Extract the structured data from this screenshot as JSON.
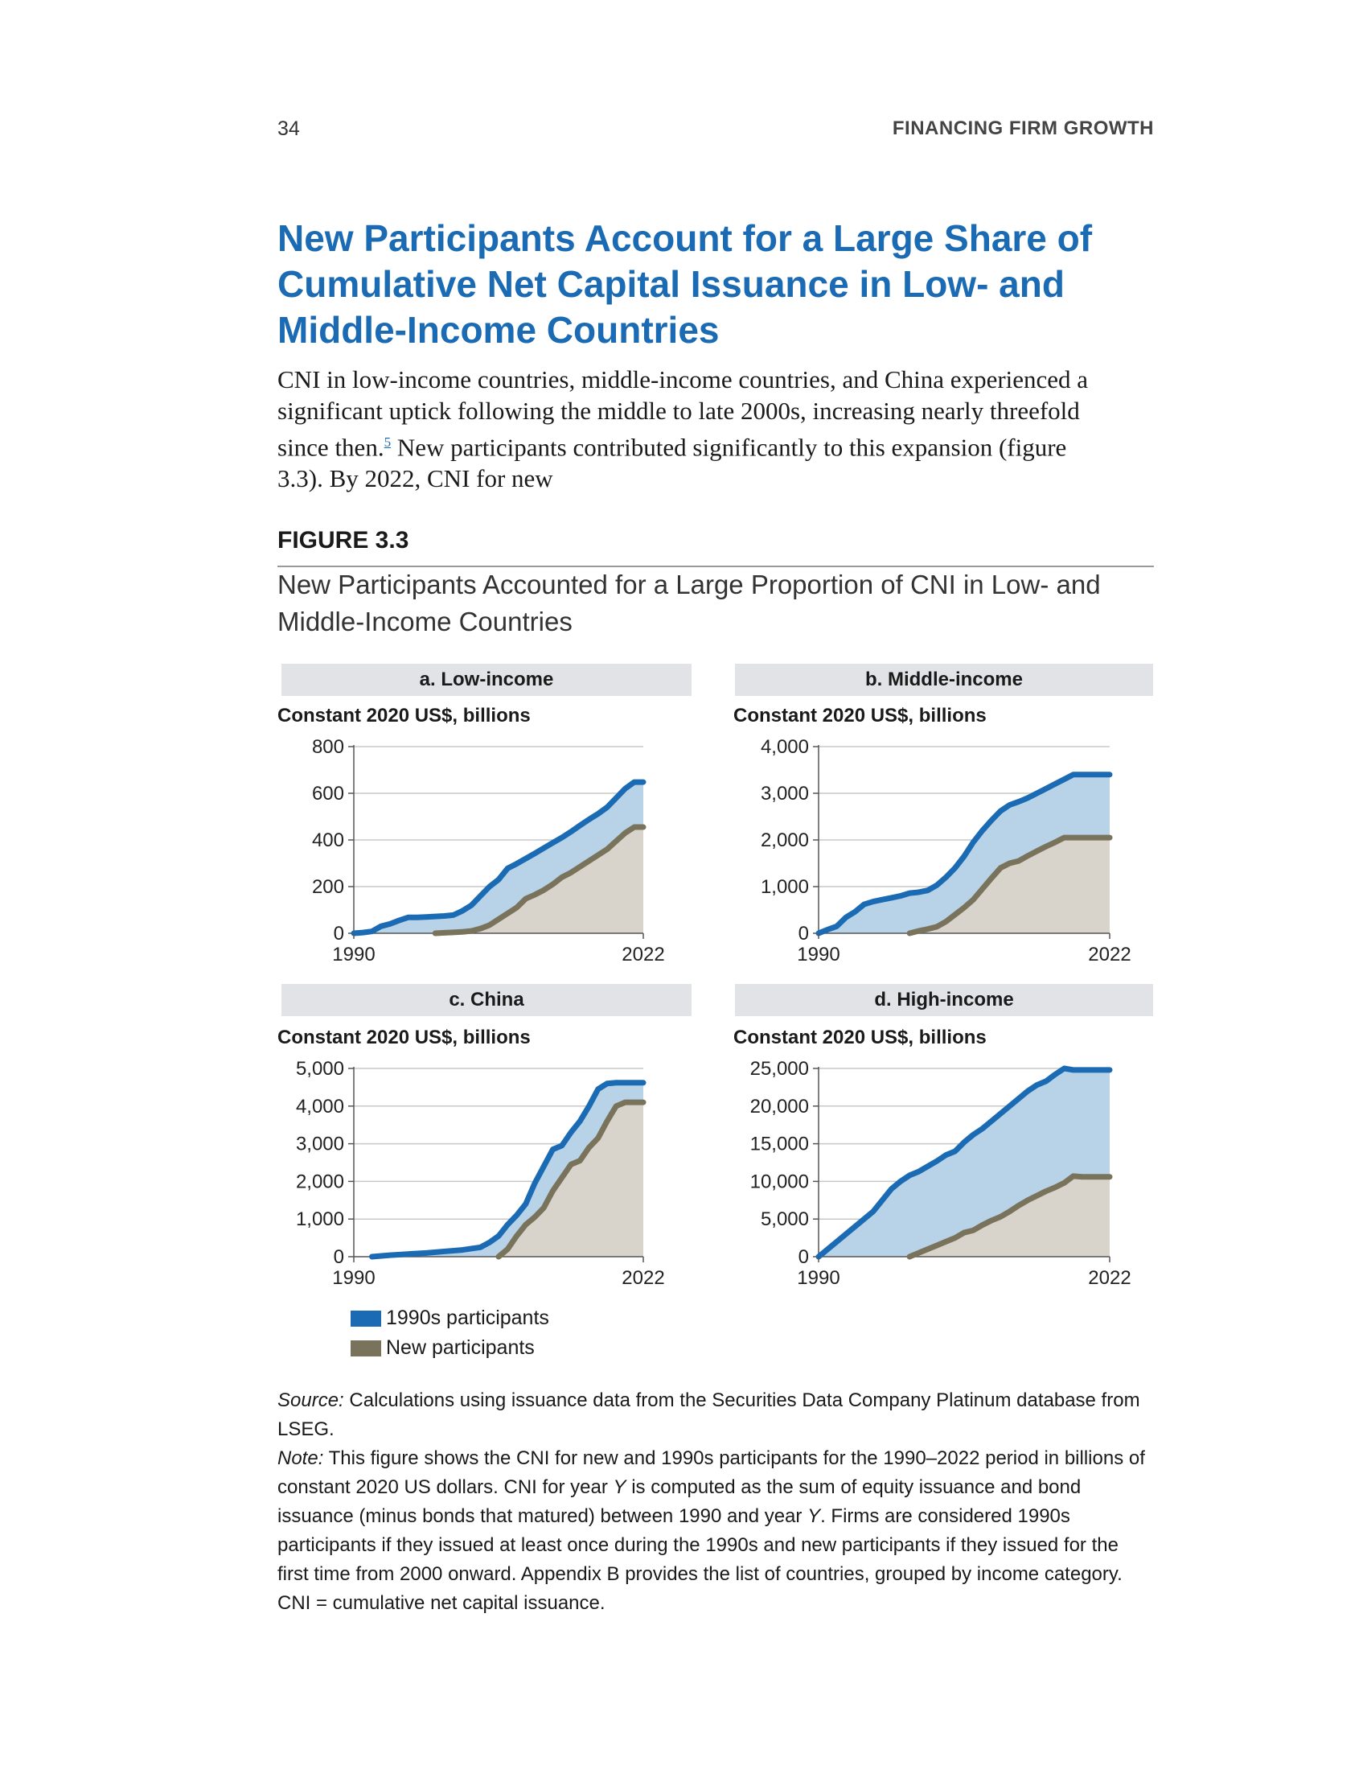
{
  "header": {
    "page_number": "34",
    "running_head": "FINANCING FIRM GROWTH"
  },
  "section_title": "New Participants Account for a Large Share of Cumulative Net Capital Issuance in Low- and Middle-Income Countries",
  "body": {
    "text_before": "CNI in low-income countries, middle-income countries, and China experienced a significant uptick following the middle to late 2000s, increasing nearly threefold since then.",
    "footnote_ref": "5",
    "text_after": " New participants contributed significantly to this expansion (figure 3.3). By 2022, CNI for new"
  },
  "figure": {
    "label": "FIGURE 3.3",
    "title": "New Participants Accounted for a Large Proportion of CNI in Low- and Middle-Income Countries"
  },
  "colors": {
    "series_1990s": "#1a6bb4",
    "fill_1990s": "#b8d2e8",
    "series_new": "#7a735c",
    "fill_new": "#d8d4cc"
  },
  "legend": {
    "items": [
      "1990s participants",
      "New participants"
    ]
  },
  "chart_data": [
    {
      "panel": "a. Low-income",
      "type": "area",
      "ylabel": "Constant 2020 US$, billions",
      "ylim": [
        0,
        800
      ],
      "yticks": [
        "0",
        "200",
        "400",
        "600",
        "800"
      ],
      "ytick_values": [
        0,
        200,
        400,
        600,
        800
      ],
      "xlim": [
        1990,
        2022
      ],
      "xticks": [
        "1990",
        "2022"
      ],
      "grid": true,
      "series": [
        {
          "name": "1990s participants",
          "x": [
            1990,
            1991,
            1992,
            1993,
            1994,
            1995,
            1996,
            1997,
            1998,
            1999,
            2000,
            2001,
            2002,
            2003,
            2004,
            2005,
            2006,
            2007,
            2008,
            2009,
            2010,
            2011,
            2012,
            2013,
            2014,
            2015,
            2016,
            2017,
            2018,
            2019,
            2020,
            2021,
            2022
          ],
          "y": [
            0,
            3,
            8,
            30,
            40,
            55,
            68,
            68,
            70,
            72,
            74,
            78,
            96,
            120,
            160,
            200,
            230,
            278,
            298,
            320,
            342,
            365,
            388,
            410,
            435,
            462,
            488,
            512,
            540,
            580,
            620,
            648,
            648
          ]
        },
        {
          "name": "New participants",
          "x": [
            1999,
            2000,
            2001,
            2002,
            2003,
            2004,
            2005,
            2006,
            2007,
            2008,
            2009,
            2010,
            2011,
            2012,
            2013,
            2014,
            2015,
            2016,
            2017,
            2018,
            2019,
            2020,
            2021,
            2022
          ],
          "y": [
            0,
            2,
            4,
            6,
            10,
            20,
            35,
            60,
            85,
            110,
            148,
            165,
            185,
            210,
            240,
            260,
            285,
            310,
            335,
            360,
            395,
            430,
            455,
            455
          ]
        }
      ]
    },
    {
      "panel": "b. Middle-income",
      "type": "area",
      "ylabel": "Constant 2020 US$, billions",
      "ylim": [
        0,
        4000
      ],
      "yticks": [
        "0",
        "1,000",
        "2,000",
        "3,000",
        "4,000"
      ],
      "ytick_values": [
        0,
        1000,
        2000,
        3000,
        4000
      ],
      "xlim": [
        1990,
        2022
      ],
      "xticks": [
        "1990",
        "2022"
      ],
      "grid": true,
      "series": [
        {
          "name": "1990s participants",
          "x": [
            1990,
            1991,
            1992,
            1993,
            1994,
            1995,
            1996,
            1997,
            1998,
            1999,
            2000,
            2001,
            2002,
            2003,
            2004,
            2005,
            2006,
            2007,
            2008,
            2009,
            2010,
            2011,
            2012,
            2013,
            2014,
            2015,
            2016,
            2017,
            2018,
            2019,
            2020,
            2021,
            2022
          ],
          "y": [
            0,
            80,
            150,
            340,
            460,
            620,
            680,
            720,
            760,
            800,
            860,
            880,
            920,
            1030,
            1200,
            1400,
            1650,
            1950,
            2200,
            2420,
            2620,
            2750,
            2820,
            2900,
            3000,
            3100,
            3200,
            3300,
            3400,
            3400,
            3400,
            3400,
            3400
          ]
        },
        {
          "name": "New participants",
          "x": [
            2000,
            2001,
            2002,
            2003,
            2004,
            2005,
            2006,
            2007,
            2008,
            2009,
            2010,
            2011,
            2012,
            2013,
            2014,
            2015,
            2016,
            2017,
            2018,
            2019,
            2020,
            2021,
            2022
          ],
          "y": [
            0,
            50,
            90,
            140,
            250,
            400,
            550,
            720,
            950,
            1180,
            1400,
            1500,
            1550,
            1660,
            1760,
            1860,
            1950,
            2050,
            2050,
            2050,
            2050,
            2050,
            2050
          ]
        }
      ]
    },
    {
      "panel": "c. China",
      "type": "area",
      "ylabel": "Constant 2020 US$, billions",
      "ylim": [
        0,
        5000
      ],
      "yticks": [
        "0",
        "1,000",
        "2,000",
        "3,000",
        "4,000",
        "5,000"
      ],
      "ytick_values": [
        0,
        1000,
        2000,
        3000,
        4000,
        5000
      ],
      "xlim": [
        1990,
        2022
      ],
      "xticks": [
        "1990",
        "2022"
      ],
      "grid": true,
      "series": [
        {
          "name": "1990s participants",
          "x": [
            1992,
            1994,
            1996,
            1998,
            2000,
            2002,
            2004,
            2005,
            2006,
            2007,
            2008,
            2009,
            2010,
            2011,
            2012,
            2013,
            2014,
            2015,
            2016,
            2017,
            2018,
            2019,
            2020,
            2021,
            2022
          ],
          "y": [
            0,
            40,
            70,
            100,
            140,
            180,
            250,
            380,
            550,
            850,
            1100,
            1400,
            1950,
            2400,
            2850,
            2950,
            3300,
            3600,
            4000,
            4450,
            4600,
            4620,
            4620,
            4620,
            4620
          ]
        },
        {
          "name": "New participants",
          "x": [
            2006,
            2007,
            2008,
            2009,
            2010,
            2011,
            2012,
            2013,
            2014,
            2015,
            2016,
            2017,
            2018,
            2019,
            2020,
            2021,
            2022
          ],
          "y": [
            0,
            200,
            550,
            850,
            1050,
            1300,
            1750,
            2100,
            2450,
            2550,
            2900,
            3150,
            3600,
            4000,
            4100,
            4100,
            4100
          ]
        }
      ]
    },
    {
      "panel": "d. High-income",
      "type": "area",
      "ylabel": "Constant 2020 US$, billions",
      "ylim": [
        0,
        25000
      ],
      "yticks": [
        "0",
        "5,000",
        "10,000",
        "15,000",
        "20,000",
        "25,000"
      ],
      "ytick_values": [
        0,
        5000,
        10000,
        15000,
        20000,
        25000
      ],
      "xlim": [
        1990,
        2022
      ],
      "xticks": [
        "1990",
        "2022"
      ],
      "grid": true,
      "series": [
        {
          "name": "1990s participants",
          "x": [
            1990,
            1991,
            1992,
            1993,
            1994,
            1995,
            1996,
            1997,
            1998,
            1999,
            2000,
            2001,
            2002,
            2003,
            2004,
            2005,
            2006,
            2007,
            2008,
            2009,
            2010,
            2011,
            2012,
            2013,
            2014,
            2015,
            2016,
            2017,
            2018,
            2019,
            2020,
            2021,
            2022
          ],
          "y": [
            0,
            1000,
            2000,
            3000,
            4000,
            5000,
            6000,
            7500,
            9000,
            10000,
            10800,
            11300,
            12000,
            12700,
            13500,
            14000,
            15200,
            16200,
            17000,
            18000,
            19000,
            20000,
            21000,
            22000,
            22800,
            23300,
            24200,
            25000,
            24800,
            24800,
            24800,
            24800,
            24800
          ]
        },
        {
          "name": "New participants",
          "x": [
            2000,
            2001,
            2002,
            2003,
            2004,
            2005,
            2006,
            2007,
            2008,
            2009,
            2010,
            2011,
            2012,
            2013,
            2014,
            2015,
            2016,
            2017,
            2018,
            2019,
            2020,
            2021,
            2022
          ],
          "y": [
            0,
            500,
            1000,
            1500,
            2000,
            2500,
            3200,
            3500,
            4200,
            4800,
            5300,
            6000,
            6800,
            7500,
            8100,
            8700,
            9200,
            9800,
            10700,
            10600,
            10600,
            10600,
            10600
          ]
        }
      ]
    }
  ],
  "source_note": {
    "source_label": "Source:",
    "source_text": " Calculations using issuance data from the Securities Data Company Platinum database from LSEG.",
    "note_label": "Note:",
    "note_text_1": " This figure shows the CNI for new and 1990s participants for the 1990–2022 period in billions of constant 2020 US dollars. CNI for year ",
    "note_var_1": "Y",
    "note_text_2": " is computed as the sum of equity issuance and bond issuance (minus bonds that matured) between 1990 and year ",
    "note_var_2": "Y",
    "note_text_3": ". Firms are considered 1990s participants if they issued at least once during the 1990s and new participants if they issued for the first time from 2000 onward. Appendix B provides the list of countries, grouped by income category. CNI = cumulative net capital issuance."
  }
}
